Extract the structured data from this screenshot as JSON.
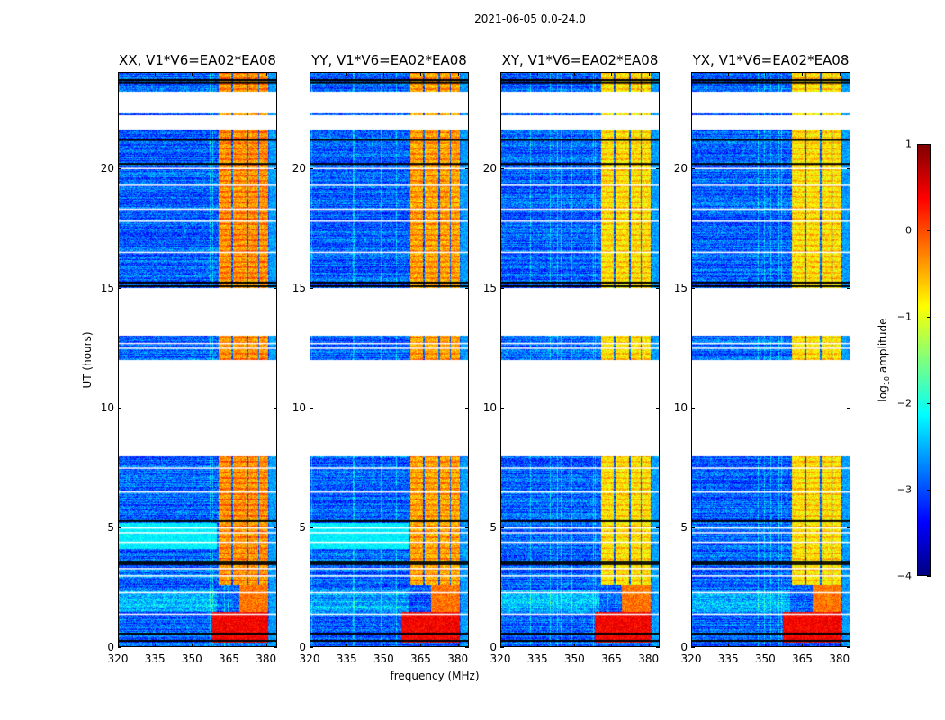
{
  "figure_title": "2021-06-05 0.0-24.0",
  "xlabel": "frequency (MHz)",
  "ylabel": "UT (hours)",
  "colorbar": {
    "label_prefix": "log",
    "label_sub": "10",
    "label_suffix": " amplitude",
    "ticks": [
      "1",
      "0",
      "−1",
      "−2",
      "−3",
      "−4"
    ],
    "tick_values": [
      1,
      0,
      -1,
      -2,
      -3,
      -4
    ],
    "range": [
      -4,
      1
    ],
    "colormap": "jet"
  },
  "chart_data": {
    "type": "heatmap",
    "title": "2021-06-05 0.0-24.0",
    "xlabel": "frequency (MHz)",
    "ylabel": "UT (hours)",
    "xlim": [
      320,
      384.5
    ],
    "ylim": [
      0,
      24
    ],
    "xticks": [
      "320",
      "335",
      "350",
      "365",
      "380"
    ],
    "xtick_values": [
      320,
      335,
      350,
      365,
      380
    ],
    "yticks": [
      "0",
      "5",
      "10",
      "15",
      "20"
    ],
    "ytick_values": [
      0,
      5,
      10,
      15,
      20
    ],
    "value_range": [
      -4,
      1
    ],
    "background_level": -2.9,
    "flagged_hours": [
      [
        8.0,
        12.0
      ],
      [
        13.0,
        15.0
      ],
      [
        21.6,
        22.2
      ],
      [
        22.3,
        23.2
      ]
    ],
    "black_lines_hours": [
      0.3,
      0.6,
      3.5,
      3.6,
      5.3,
      15.1,
      15.25,
      20.2,
      21.2,
      23.6,
      23.7
    ],
    "white_lines_hours": [
      1.4,
      2.3,
      3.0,
      3.3,
      4.4,
      4.8,
      5.0,
      6.5,
      7.5,
      12.5,
      12.7,
      16.5,
      17.8,
      18.3,
      19.3,
      20.0,
      22.8,
      23.0
    ],
    "bright_bands_mhz": [
      [
        360.5,
        365.8
      ],
      [
        366.5,
        371.8
      ],
      [
        372.6,
        376.5
      ],
      [
        377.0,
        380.5
      ]
    ],
    "bright_band_level": -0.6,
    "bright_band_hours": [
      2.6,
      24
    ],
    "strong_rfi": {
      "mhz": [
        358,
        380.5
      ],
      "hours": [
        0.2,
        1.5
      ],
      "level": 0.4
    },
    "panels": [
      {
        "title": "XX, V1*V6=EA02*EA08",
        "band_level": -0.4,
        "elevated_hours": [
          4.1,
          5.2
        ]
      },
      {
        "title": "YY, V1*V6=EA02*EA08",
        "band_level": -0.5,
        "elevated_hours": [
          4.1,
          5.2
        ]
      },
      {
        "title": "XY, V1*V6=EA02*EA08",
        "band_level": -0.8,
        "elevated_hours": null
      },
      {
        "title": "YX, V1*V6=EA02*EA08",
        "band_level": -0.8,
        "elevated_hours": null
      }
    ]
  }
}
